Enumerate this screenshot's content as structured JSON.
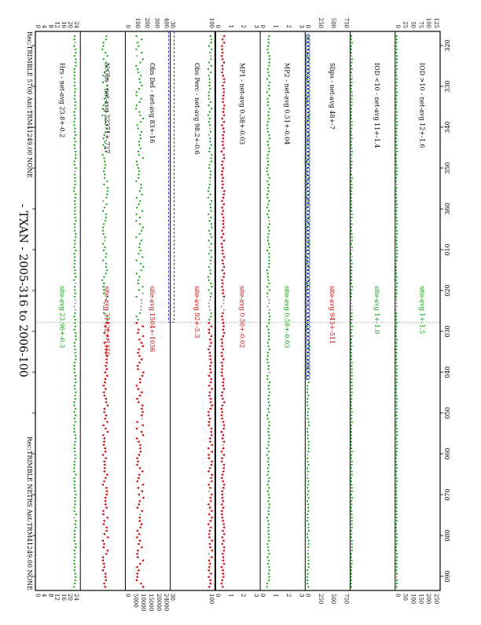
{
  "title": "- TXAN - 2005-316 to 2006-100",
  "receivers": {
    "left": "Rec:TRIMBLE 5700 Ant:TRM41249.00 NONE",
    "right": "Rec:TRIMBLE NETRS Ant:TRM41249.00 NONE"
  },
  "colors": {
    "segment1": "#00a000",
    "segment2": "#cc0000",
    "gap": "#999999",
    "slips_marker": "#0000cc",
    "axis": "#000000"
  },
  "x_axis": {
    "ticks": [
      "320",
      "330",
      "340",
      "350",
      "360",
      "010",
      "020",
      "030",
      "040",
      "050",
      "060",
      "070",
      "080",
      "090"
    ]
  },
  "chart_data": {
    "type": "line",
    "x_range": [
      "2005-316",
      "2006-100"
    ],
    "panels": [
      {
        "id": "iod_gt10",
        "net_label": "IOD >10 - net-avg 12+-1.6",
        "site_label": "site-avg 1+-1.5",
        "site_color": "green",
        "ticks": [
          "125",
          "100",
          "75",
          "50",
          "25",
          "0"
        ],
        "right_ticks": [
          "250",
          "200",
          "150",
          "100",
          "50",
          "0"
        ],
        "level": 0.03,
        "noise": 0.01,
        "segments": [
          "green",
          "green"
        ]
      },
      {
        "id": "iod_lt10",
        "net_label": "IOD <10 - net-avg 11+-1.4",
        "site_label": "site-avg 1+-1.0",
        "site_color": "green",
        "ticks": [],
        "right_ticks": [],
        "level": 0.03,
        "noise": 0.01,
        "segments": [
          "green",
          "green"
        ]
      },
      {
        "id": "slips",
        "net_label": "Slips - net-avg 48+-7",
        "site_label": "site-avg 943+-511",
        "site_color": "red",
        "ticks": [
          "750",
          "500",
          "250",
          "0"
        ],
        "right_ticks": [
          "750",
          "500",
          "250",
          "0"
        ],
        "level": 0.06,
        "noise": 0.02,
        "segments": [
          "green",
          "green"
        ],
        "slip_markers": true
      },
      {
        "id": "mp2",
        "net_label": "MP2 - net-avg 0.51+-0.04",
        "site_label": "site-avg 0.58+-0.03",
        "site_color": "green",
        "ticks": [
          "3",
          "2",
          "1",
          "0"
        ],
        "right_ticks": [
          "3",
          "2",
          "1",
          "0"
        ],
        "level": 0.18,
        "noise": 0.03,
        "segments": [
          "green",
          "green"
        ]
      },
      {
        "id": "mp1",
        "net_label": "MP1 - net-avg 0.38+-0.03",
        "site_label": "site-avg 0.50+-0.02",
        "site_color": "red",
        "ticks": [
          "3",
          "2",
          "1",
          "0"
        ],
        "right_ticks": [
          "3",
          "2",
          "1",
          "0"
        ],
        "level": 0.16,
        "noise": 0.03,
        "segments": [
          "red",
          "red"
        ]
      },
      {
        "id": "obs_perc",
        "net_label": "Obs Perc - net-avg 98.2+-0.6",
        "site_label": "site-avg 92+-5.3",
        "site_color": "red",
        "ticks": [
          "100",
          "30"
        ],
        "right_ticks": [
          "100",
          "30"
        ],
        "level": 0.88,
        "noise": 0.04,
        "segments": [
          "green",
          "red"
        ]
      },
      {
        "id": "obs_del",
        "net_label": "Obs Del - net-avg 83+-16",
        "site_label": "site-avg 1504+-1036",
        "site_color": "red",
        "ticks": [
          "400",
          "300",
          "200",
          "100",
          "0"
        ],
        "right_ticks": [
          "24000",
          "20000",
          "15000",
          "10000",
          "5000",
          "0"
        ],
        "level": 0.32,
        "noise": 0.08,
        "segments": [
          "green",
          "red"
        ],
        "blue_band": true
      },
      {
        "id": "n_obs",
        "net_label": "N.Obs - net-avg 22371+-727",
        "site_label": "site-avg 21422+-1359",
        "site_color": "red",
        "ticks": [],
        "right_ticks": [],
        "level": 0.55,
        "noise": 0.06,
        "segments": [
          "green",
          "red"
        ]
      },
      {
        "id": "hrs",
        "net_label": "Hrs - net-avg 23.8+-0.2",
        "site_label": "site-avg 23.96+-0.3",
        "site_color": "green",
        "ticks": [
          "24",
          "20",
          "16",
          "12",
          "8",
          "4",
          "0"
        ],
        "right_ticks": [
          "24",
          "20",
          "16",
          "12",
          "8",
          "4",
          "0"
        ],
        "level": 0.88,
        "noise": 0.02,
        "segments": [
          "green",
          "green"
        ]
      }
    ]
  }
}
